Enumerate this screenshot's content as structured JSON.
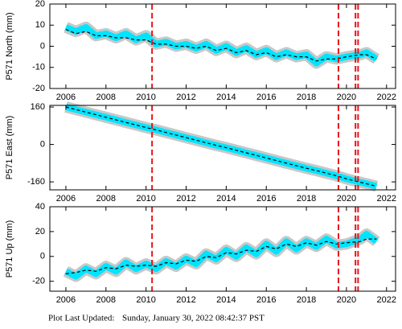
{
  "chart_data": [
    {
      "type": "line",
      "ylabel": "P571 North (mm)",
      "x": [
        2006.0,
        2006.5,
        2007.0,
        2007.5,
        2008.0,
        2008.5,
        2009.0,
        2009.5,
        2010.0,
        2010.5,
        2011.0,
        2011.5,
        2012.0,
        2012.5,
        2013.0,
        2013.5,
        2014.0,
        2014.5,
        2015.0,
        2015.5,
        2016.0,
        2016.5,
        2017.0,
        2017.5,
        2018.0,
        2018.5,
        2019.0,
        2019.5,
        2020.0,
        2020.7,
        2021.0,
        2021.5
      ],
      "series": [
        {
          "color": "#00e5ff",
          "values": [
            9,
            7,
            9,
            5,
            6,
            4,
            6,
            3,
            5,
            1,
            2,
            0,
            1,
            -1,
            1,
            -2,
            0,
            -3,
            -1,
            -4,
            -2,
            -5,
            -3,
            -5,
            -4,
            -8,
            -5,
            -6,
            -5,
            -4,
            -3,
            -6
          ]
        },
        {
          "color": "#000000",
          "dashed": true,
          "values": [
            8,
            6,
            7,
            5,
            5,
            4,
            4,
            3,
            3,
            1,
            1,
            0,
            0,
            -1,
            0,
            -2,
            -1,
            -3,
            -2,
            -4,
            -3,
            -5,
            -4,
            -5,
            -5,
            -7,
            -6,
            -6,
            -5,
            -4,
            -4,
            -6
          ]
        }
      ],
      "xlim": [
        2005.2,
        2022.45
      ],
      "ylim": [
        -20,
        20
      ],
      "xticks": [
        2006,
        2008,
        2010,
        2012,
        2014,
        2016,
        2018,
        2020,
        2022
      ],
      "yticks": [
        -20,
        -10,
        0,
        10,
        20
      ],
      "vlines": [
        2010.3,
        2019.6,
        2020.45,
        2020.58
      ],
      "vline_color": "#e8161b"
    },
    {
      "type": "line",
      "ylabel": "P571 East (mm)",
      "x": [
        2006.0,
        2006.5,
        2007.0,
        2007.5,
        2008.0,
        2008.5,
        2009.0,
        2009.5,
        2010.0,
        2010.5,
        2011.0,
        2011.5,
        2012.0,
        2012.5,
        2013.0,
        2013.5,
        2014.0,
        2014.5,
        2015.0,
        2015.5,
        2016.0,
        2016.5,
        2017.0,
        2017.5,
        2018.0,
        2018.5,
        2019.0,
        2019.5,
        2020.0,
        2020.7,
        2021.0,
        2021.5
      ],
      "series": [
        {
          "color": "#00e5ff",
          "values": [
            160,
            149,
            138,
            127,
            116,
            105,
            94,
            83,
            72,
            62,
            51,
            40,
            29,
            18,
            7,
            -4,
            -14,
            -25,
            -36,
            -47,
            -58,
            -69,
            -80,
            -91,
            -102,
            -112,
            -123,
            -134,
            -147,
            -162,
            -168,
            -179
          ]
        },
        {
          "color": "#000000",
          "dashed": true,
          "values": [
            160,
            149,
            138,
            127,
            116,
            105,
            94,
            83,
            72,
            62,
            51,
            40,
            29,
            18,
            7,
            -4,
            -14,
            -25,
            -36,
            -47,
            -58,
            -69,
            -80,
            -91,
            -102,
            -112,
            -123,
            -134,
            -147,
            -162,
            -168,
            -179
          ]
        }
      ],
      "xlim": [
        2005.2,
        2022.45
      ],
      "ylim": [
        -194,
        167
      ],
      "xticks": [
        2006,
        2008,
        2010,
        2012,
        2014,
        2016,
        2018,
        2020,
        2022
      ],
      "yticks": [
        -160,
        0,
        160
      ],
      "vlines": [
        2010.3,
        2019.6,
        2020.45,
        2020.58
      ],
      "vline_color": "#e8161b"
    },
    {
      "type": "line",
      "ylabel": "P571 Up (mm)",
      "x": [
        2006.0,
        2006.5,
        2007.0,
        2007.5,
        2008.0,
        2008.5,
        2009.0,
        2009.5,
        2010.0,
        2010.5,
        2011.0,
        2011.5,
        2012.0,
        2012.5,
        2013.0,
        2013.5,
        2014.0,
        2014.5,
        2015.0,
        2015.5,
        2016.0,
        2016.5,
        2017.0,
        2017.5,
        2018.0,
        2018.5,
        2019.0,
        2019.5,
        2020.0,
        2020.7,
        2021.0,
        2021.5
      ],
      "series": [
        {
          "color": "#00e5ff",
          "values": [
            -12,
            -16,
            -10,
            -14,
            -8,
            -12,
            -5,
            -10,
            -6,
            -10,
            -4,
            -8,
            -2,
            -6,
            2,
            -2,
            5,
            0,
            7,
            2,
            10,
            4,
            12,
            6,
            12,
            8,
            14,
            9,
            10,
            14,
            18,
            12
          ]
        },
        {
          "color": "#000000",
          "dashed": true,
          "values": [
            -14,
            -13,
            -11,
            -12,
            -9,
            -10,
            -7,
            -8,
            -7,
            -8,
            -5,
            -6,
            -3,
            -4,
            0,
            -1,
            3,
            2,
            5,
            4,
            8,
            6,
            10,
            8,
            11,
            9,
            12,
            10,
            11,
            12,
            14,
            14
          ]
        }
      ],
      "xlim": [
        2005.2,
        2022.45
      ],
      "ylim": [
        -28,
        40
      ],
      "xticks": [
        2006,
        2008,
        2010,
        2012,
        2014,
        2016,
        2018,
        2020,
        2022
      ],
      "yticks": [
        -20,
        0,
        20,
        40
      ],
      "vlines": [
        2010.3,
        2019.6,
        2020.45,
        2020.58
      ],
      "vline_color": "#e8161b"
    }
  ],
  "footer": {
    "label": "Plot Last Updated:",
    "timestamp": "Sunday, January 30, 2022 08:42:37 PST"
  }
}
